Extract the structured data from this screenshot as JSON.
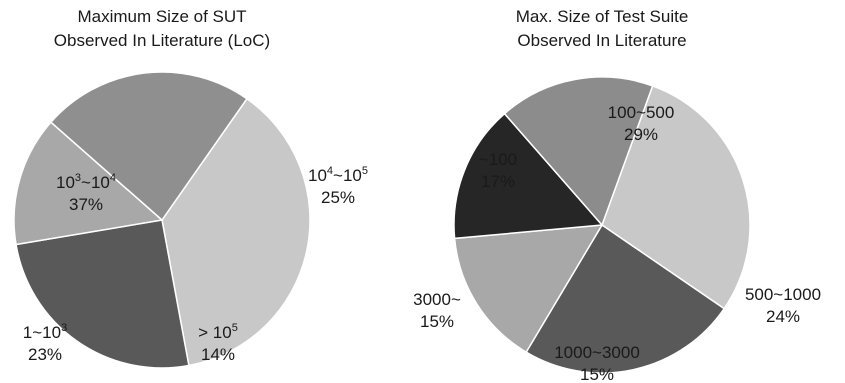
{
  "chart_data": [
    {
      "type": "pie",
      "title": [
        "Maximum Size of SUT",
        "Observed In Literature (LoC)"
      ],
      "slices": [
        {
          "label": [
            {
              "t": "10"
            },
            {
              "t": "3",
              "sup": true
            },
            {
              "t": "~10"
            },
            {
              "t": "4",
              "sup": true
            }
          ],
          "pct_text": "37%",
          "value": 37,
          "color": "#c8c8c8"
        },
        {
          "label": [
            {
              "t": "10"
            },
            {
              "t": "4",
              "sup": true
            },
            {
              "t": "~10"
            },
            {
              "t": "5",
              "sup": true
            }
          ],
          "pct_text": "25%",
          "value": 25,
          "color": "#595959"
        },
        {
          "label": [
            {
              "t": "> 10"
            },
            {
              "t": "5",
              "sup": true
            }
          ],
          "pct_text": "14%",
          "value": 14,
          "color": "#a8a8a8"
        },
        {
          "label": [
            {
              "t": "1~10"
            },
            {
              "t": "3",
              "sup": true
            }
          ],
          "pct_text": "23%",
          "value": 23,
          "color": "#8f8f8f"
        }
      ]
    },
    {
      "type": "pie",
      "title": [
        "Max. Size of Test Suite",
        "Observed In Literature"
      ],
      "slices": [
        {
          "label": [
            {
              "t": "100~500"
            }
          ],
          "pct_text": "29%",
          "value": 29,
          "color": "#c8c8c8"
        },
        {
          "label": [
            {
              "t": "500~1000"
            }
          ],
          "pct_text": "24%",
          "value": 24,
          "color": "#595959"
        },
        {
          "label": [
            {
              "t": "1000~3000"
            }
          ],
          "pct_text": "15%",
          "value": 15,
          "color": "#a8a8a8"
        },
        {
          "label": [
            {
              "t": "3000~"
            }
          ],
          "pct_text": "15%",
          "value": 15,
          "color": "#262626"
        },
        {
          "label": [
            {
              "t": "~100"
            }
          ],
          "pct_text": "17%",
          "value": 17,
          "color": "#8c8c8c"
        }
      ]
    }
  ]
}
